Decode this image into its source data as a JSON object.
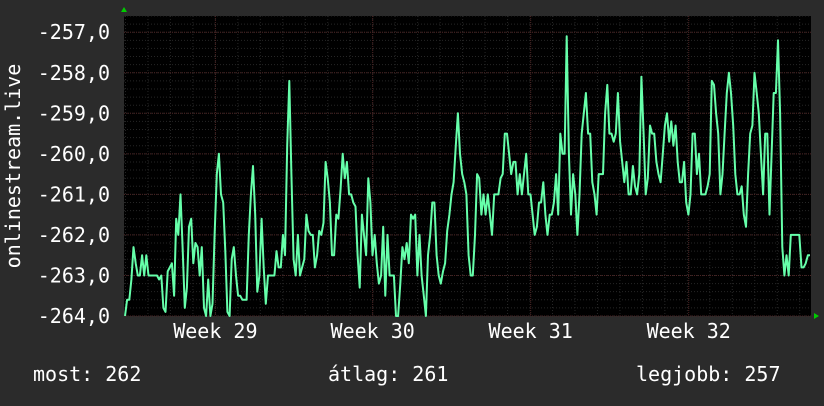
{
  "chart_data": {
    "type": "line",
    "ylabel": "onlinestream.live",
    "y_ticks": [
      -264.0,
      -263.0,
      -262.0,
      -261.0,
      -260.0,
      -259.0,
      -258.0,
      -257.0
    ],
    "y_tick_labels": [
      "-264,0",
      "-263,0",
      "-262,0",
      "-261,0",
      "-260,0",
      "-259,0",
      "-258,0",
      "-257,0"
    ],
    "ylim": [
      -264.0,
      -256.6
    ],
    "x_tick_labels": [
      "Week 29",
      "Week 30",
      "Week 31",
      "Week 32"
    ],
    "x_tick_positions": [
      0.133,
      0.362,
      0.592,
      0.822
    ],
    "grid": true,
    "colors": {
      "background": "#2b2b2b",
      "plot_area": "#000000",
      "grid_major": "#4a2222",
      "grid_minor": "#262626",
      "line": "#66ffaa",
      "axis_arrow": "#00cc00"
    },
    "series": [
      {
        "values": [
          -264.0,
          -263.6,
          -263.6,
          -263.1,
          -262.3,
          -262.7,
          -263.0,
          -263.0,
          -262.5,
          -263.0,
          -262.5,
          -263.0,
          -263.0,
          -263.0,
          -263.0,
          -263.0,
          -263.1,
          -263.0,
          -263.8,
          -263.9,
          -262.9,
          -262.8,
          -262.7,
          -263.5,
          -261.6,
          -262.0,
          -261.0,
          -262.3,
          -263.8,
          -263.3,
          -261.8,
          -261.6,
          -262.7,
          -262.2,
          -262.3,
          -263.0,
          -262.3,
          -263.8,
          -264.0,
          -263.1,
          -264.0,
          -263.7,
          -262.0,
          -260.5,
          -260.0,
          -261.0,
          -261.2,
          -262.4,
          -263.9,
          -264.0,
          -262.6,
          -262.3,
          -263.0,
          -263.5,
          -263.5,
          -263.6,
          -263.6,
          -263.6,
          -262.0,
          -261.0,
          -260.3,
          -261.5,
          -263.4,
          -263.0,
          -261.6,
          -262.8,
          -263.7,
          -263.0,
          -263.0,
          -263.0,
          -263.0,
          -262.4,
          -262.8,
          -262.8,
          -262.0,
          -262.5,
          -259.8,
          -258.2,
          -260.5,
          -262.6,
          -263.0,
          -262.0,
          -263.0,
          -262.8,
          -262.6,
          -261.5,
          -261.9,
          -262.0,
          -262.0,
          -262.8,
          -262.5,
          -261.9,
          -262.0,
          -261.7,
          -260.2,
          -260.6,
          -261.2,
          -262.5,
          -262.5,
          -261.5,
          -261.6,
          -260.9,
          -260.0,
          -260.6,
          -260.2,
          -261.0,
          -261.0,
          -261.2,
          -261.3,
          -262.5,
          -263.3,
          -261.5,
          -262.0,
          -262.5,
          -260.6,
          -261.2,
          -262.5,
          -262.0,
          -262.7,
          -263.2,
          -263.0,
          -261.8,
          -263.5,
          -262.0,
          -263.0,
          -263.0,
          -263.0,
          -264.0,
          -264.0,
          -263.2,
          -262.3,
          -262.6,
          -262.2,
          -262.7,
          -261.5,
          -261.6,
          -261.5,
          -263.0,
          -262.0,
          -263.0,
          -263.5,
          -264.0,
          -262.5,
          -262.0,
          -261.2,
          -261.2,
          -262.5,
          -263.0,
          -263.2,
          -262.9,
          -262.7,
          -261.9,
          -261.5,
          -261.0,
          -260.7,
          -259.8,
          -259.0,
          -260.0,
          -260.5,
          -260.7,
          -261.0,
          -262.5,
          -263.0,
          -263.0,
          -262.0,
          -260.5,
          -260.6,
          -261.5,
          -261.0,
          -261.5,
          -261.0,
          -261.5,
          -262.0,
          -261.0,
          -261.0,
          -261.0,
          -260.6,
          -260.5,
          -259.5,
          -259.5,
          -260.0,
          -260.5,
          -260.2,
          -260.2,
          -261.0,
          -260.5,
          -261.0,
          -260.5,
          -260.0,
          -261.0,
          -261.0,
          -261.5,
          -262.0,
          -261.8,
          -261.2,
          -261.2,
          -260.7,
          -261.5,
          -262.0,
          -261.5,
          -261.5,
          -261.2,
          -260.5,
          -261.5,
          -259.5,
          -260.0,
          -260.0,
          -257.1,
          -260.0,
          -261.5,
          -260.5,
          -261.0,
          -262.0,
          -261.0,
          -259.5,
          -259.0,
          -258.5,
          -259.5,
          -259.5,
          -260.7,
          -261.0,
          -261.5,
          -260.5,
          -260.5,
          -260.5,
          -259.0,
          -258.3,
          -259.5,
          -259.5,
          -259.7,
          -259.5,
          -258.5,
          -259.7,
          -260.2,
          -260.7,
          -260.2,
          -261.0,
          -261.0,
          -260.3,
          -260.8,
          -261.0,
          -260.5,
          -258.1,
          -259.5,
          -261.0,
          -260.6,
          -259.3,
          -259.5,
          -259.5,
          -260.2,
          -260.5,
          -260.7,
          -260.0,
          -259.3,
          -259.0,
          -259.7,
          -259.2,
          -259.8,
          -259.3,
          -260.2,
          -260.7,
          -260.7,
          -260.2,
          -261.2,
          -261.5,
          -261.0,
          -259.5,
          -259.5,
          -260.5,
          -260.0,
          -261.0,
          -261.0,
          -261.0,
          -260.8,
          -260.5,
          -258.2,
          -258.3,
          -259.0,
          -259.5,
          -261.0,
          -260.5,
          -259.5,
          -258.5,
          -258.0,
          -258.5,
          -259.3,
          -260.5,
          -261.0,
          -261.0,
          -260.8,
          -261.5,
          -261.8,
          -260.5,
          -259.5,
          -259.3,
          -258.0,
          -258.5,
          -259.0,
          -260.0,
          -261.0,
          -259.5,
          -259.5,
          -261.5,
          -260.0,
          -258.5,
          -258.5,
          -257.2,
          -259.0,
          -262.3,
          -263.0,
          -262.5,
          -263.0,
          -262.0,
          -262.0,
          -262.0,
          -262.0,
          -262.0,
          -262.8,
          -262.8,
          -262.7,
          -262.5,
          -262.5
        ],
        "color": "#66ffaa"
      }
    ]
  },
  "legend": {
    "current": "most: 262",
    "average": "átlag: 261",
    "best": "legjobb: 257"
  }
}
